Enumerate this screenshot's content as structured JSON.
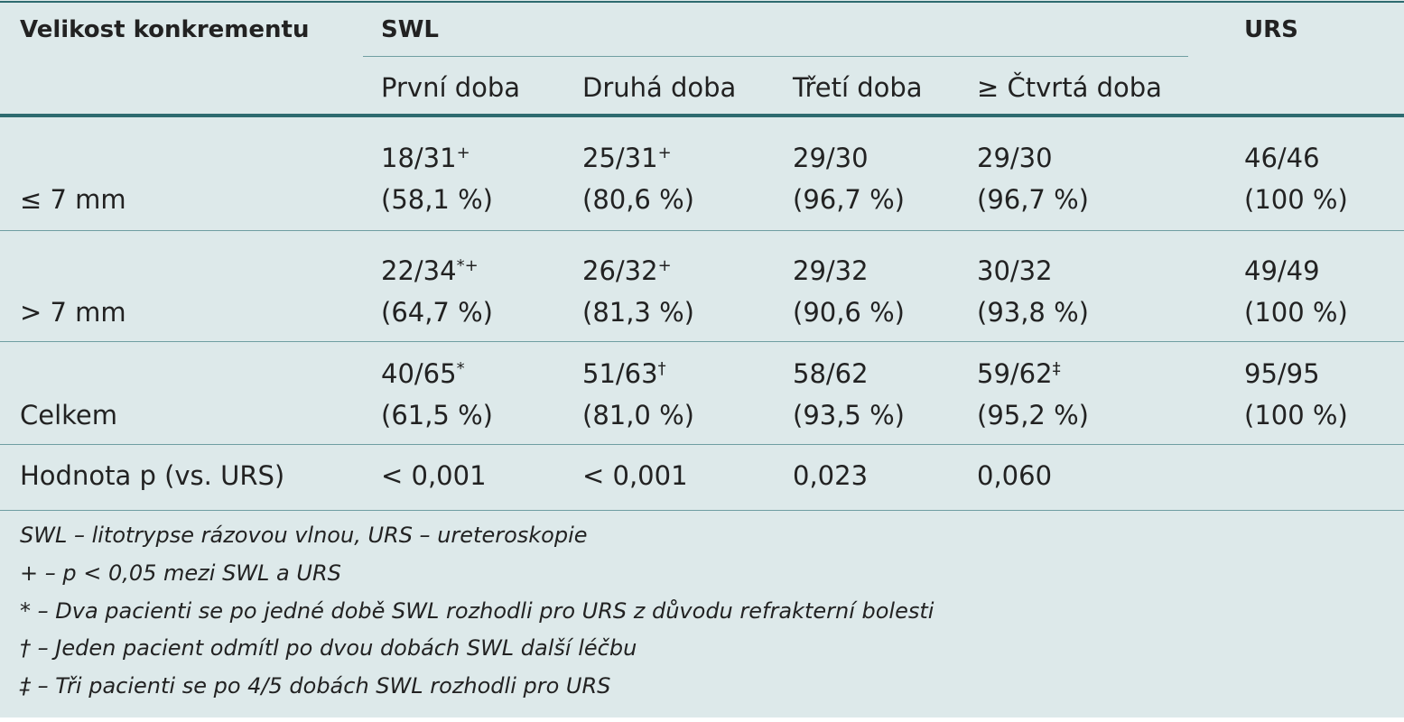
{
  "header": {
    "size": "Velikost konkrementu",
    "swl": "SWL",
    "urs": "URS",
    "sessions": [
      "První doba",
      "Druhá doba",
      "Třetí doba",
      "≥ Čtvrtá doba"
    ]
  },
  "rows": [
    {
      "label": "≤ 7 mm",
      "cells": [
        {
          "count": "18/31",
          "note": "+",
          "percent": "(58,1 %)"
        },
        {
          "count": "25/31",
          "note": "+",
          "percent": "(80,6 %)"
        },
        {
          "count": "29/30",
          "percent": "(96,7 %)"
        },
        {
          "count": "29/30",
          "percent": "(96,7 %)"
        },
        {
          "count": "46/46",
          "percent": "(100 %)"
        }
      ]
    },
    {
      "label": "> 7 mm",
      "cells": [
        {
          "count": "22/34",
          "note": "*+",
          "percent": "(64,7 %)"
        },
        {
          "count": "26/32",
          "note": "+",
          "percent": "(81,3 %)"
        },
        {
          "count": "29/32",
          "percent": "(90,6 %)"
        },
        {
          "count": "30/32",
          "percent": "(93,8 %)"
        },
        {
          "count": "49/49",
          "percent": "(100 %)"
        }
      ]
    },
    {
      "label": "Celkem",
      "cells": [
        {
          "count": "40/65",
          "note": "*",
          "percent": "(61,5 %)"
        },
        {
          "count": "51/63",
          "note": "†",
          "percent": "(81,0 %)"
        },
        {
          "count": "58/62",
          "percent": "(93,5 %)"
        },
        {
          "count": "59/62",
          "note": "‡",
          "percent": "(95,2 %)"
        },
        {
          "count": "95/95",
          "percent": "(100 %)"
        }
      ]
    }
  ],
  "p_row": {
    "label": "Hodnota p (vs. URS)",
    "values": [
      "< 0,001",
      "< 0,001",
      "0,023",
      "0,060"
    ]
  },
  "footnotes": [
    "SWL – litotrypse rázovou vlnou, URS – ureteroskopie",
    "+ – p < 0,05 mezi SWL a URS",
    "* – Dva pacienti se po jedné době SWL rozhodli pro URS z důvodu refrakterní bolesti",
    "† – Jeden pacient odmítl po dvou dobách SWL další léčbu",
    "‡ – Tři pacienti se po 4/5 dobách SWL rozhodli pro URS"
  ]
}
